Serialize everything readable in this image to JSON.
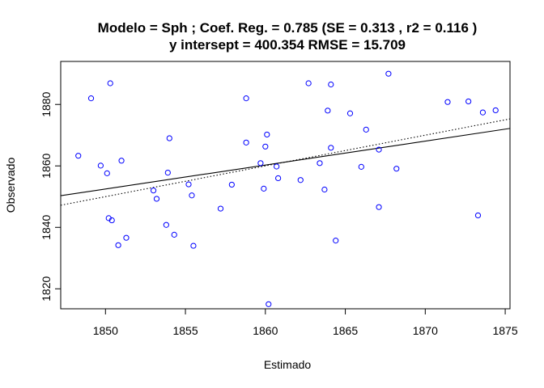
{
  "chart_data": {
    "type": "scatter",
    "title_line1": "Modelo =  Sph ; Coef. Reg. =  0.785  (SE =  0.313 , r2 =  0.116 )",
    "title_line2": "y intersept =  400.354 RMSE =  15.709",
    "xlabel": "Estimado",
    "ylabel": "Observado",
    "xlim": [
      1847.2,
      1875.3
    ],
    "ylim": [
      1813.5,
      1894.0
    ],
    "xticks": [
      1850,
      1855,
      1860,
      1865,
      1870,
      1875
    ],
    "yticks": [
      1820,
      1840,
      1860,
      1880
    ],
    "point_color": "#0000ff",
    "points": [
      [
        1848.3,
        1863.3
      ],
      [
        1849.1,
        1882.0
      ],
      [
        1849.7,
        1860.1
      ],
      [
        1850.1,
        1857.6
      ],
      [
        1850.2,
        1843.0
      ],
      [
        1850.3,
        1886.9
      ],
      [
        1850.4,
        1842.3
      ],
      [
        1850.8,
        1834.2
      ],
      [
        1851.0,
        1861.7
      ],
      [
        1851.3,
        1836.6
      ],
      [
        1853.0,
        1852.0
      ],
      [
        1853.2,
        1849.3
      ],
      [
        1853.8,
        1840.8
      ],
      [
        1853.9,
        1857.8
      ],
      [
        1854.0,
        1869.0
      ],
      [
        1854.3,
        1837.6
      ],
      [
        1855.2,
        1854.0
      ],
      [
        1855.4,
        1850.4
      ],
      [
        1855.5,
        1834.0
      ],
      [
        1857.2,
        1846.1
      ],
      [
        1857.9,
        1853.9
      ],
      [
        1858.8,
        1867.6
      ],
      [
        1858.8,
        1882.0
      ],
      [
        1859.7,
        1860.9
      ],
      [
        1859.9,
        1852.6
      ],
      [
        1860.0,
        1866.3
      ],
      [
        1860.1,
        1870.2
      ],
      [
        1860.2,
        1815.0
      ],
      [
        1860.7,
        1859.8
      ],
      [
        1860.8,
        1856.0
      ],
      [
        1862.2,
        1855.4
      ],
      [
        1862.7,
        1886.9
      ],
      [
        1863.4,
        1860.9
      ],
      [
        1863.7,
        1852.3
      ],
      [
        1863.9,
        1878.0
      ],
      [
        1864.1,
        1886.5
      ],
      [
        1864.1,
        1865.9
      ],
      [
        1864.4,
        1835.7
      ],
      [
        1865.3,
        1877.1
      ],
      [
        1866.0,
        1859.7
      ],
      [
        1866.3,
        1871.8
      ],
      [
        1867.1,
        1865.3
      ],
      [
        1867.1,
        1846.6
      ],
      [
        1867.7,
        1890.0
      ],
      [
        1868.2,
        1859.1
      ],
      [
        1871.4,
        1880.8
      ],
      [
        1872.7,
        1881.0
      ],
      [
        1873.3,
        1843.9
      ],
      [
        1873.6,
        1877.4
      ],
      [
        1874.4,
        1878.1
      ]
    ],
    "fitted_line": {
      "x": [
        1847.2,
        1875.3
      ],
      "y": [
        1850.3,
        1872.2
      ],
      "style": "solid"
    },
    "identity_line": {
      "x": [
        1847.2,
        1875.3
      ],
      "y": [
        1847.2,
        1875.3
      ],
      "style": "dotted"
    }
  }
}
